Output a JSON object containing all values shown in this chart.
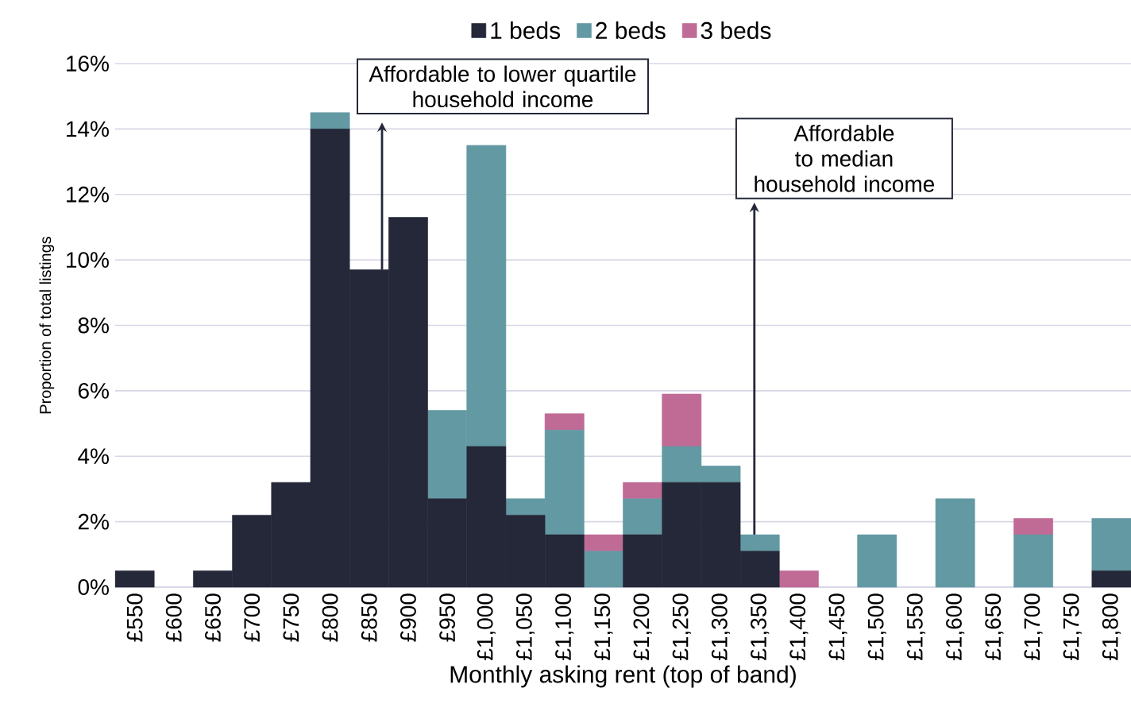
{
  "chart_data": {
    "type": "bar",
    "stacked": true,
    "xlabel": "Monthly asking rent (top of band)",
    "ylabel": "Proportion of total listings",
    "categories": [
      "£550",
      "£600",
      "£650",
      "£700",
      "£750",
      "£800",
      "£850",
      "£900",
      "£950",
      "£1,000",
      "£1,050",
      "£1,100",
      "£1,150",
      "£1,200",
      "£1,250",
      "£1,300",
      "£1,350",
      "£1,400",
      "£1,450",
      "£1,500",
      "£1,550",
      "£1,600",
      "£1,650",
      "£1,700",
      "£1,750",
      "£1,800"
    ],
    "series": [
      {
        "name": "1 beds",
        "color": "#252839",
        "values": [
          0.5,
          0,
          0.5,
          2.2,
          3.2,
          14.0,
          9.7,
          11.3,
          2.7,
          4.3,
          2.2,
          1.6,
          0,
          1.6,
          3.2,
          3.2,
          1.1,
          0,
          0,
          0,
          0,
          0,
          0,
          0,
          0,
          0.5
        ]
      },
      {
        "name": "2 beds",
        "color": "#6399a2",
        "values": [
          0,
          0,
          0,
          0,
          0,
          0.5,
          0,
          0,
          2.7,
          9.2,
          0.5,
          3.2,
          1.1,
          1.1,
          1.1,
          0.5,
          0.5,
          0,
          0,
          1.6,
          0,
          2.7,
          0,
          1.6,
          0,
          1.6
        ]
      },
      {
        "name": "3 beds",
        "color": "#c06a96",
        "values": [
          0,
          0,
          0,
          0,
          0,
          0,
          0,
          0,
          0,
          0,
          0,
          0.5,
          0.5,
          0.5,
          1.6,
          0,
          0,
          0.5,
          0,
          0,
          0,
          0,
          0,
          0.5,
          0,
          0
        ]
      }
    ],
    "ylim": [
      0,
      16
    ],
    "yticks": [
      {
        "value": 0,
        "label": "0%"
      },
      {
        "value": 2,
        "label": "2%"
      },
      {
        "value": 4,
        "label": "4%"
      },
      {
        "value": 6,
        "label": "6%"
      },
      {
        "value": 8,
        "label": "8%"
      },
      {
        "value": 10,
        "label": "10%"
      },
      {
        "value": 12,
        "label": "12%"
      },
      {
        "value": 14,
        "label": "14%"
      },
      {
        "value": 16,
        "label": "16%"
      }
    ],
    "grid": "y",
    "legend": "top",
    "annotations": [
      "Affordable to lower quartile household income",
      "Affordable to median household income"
    ]
  }
}
